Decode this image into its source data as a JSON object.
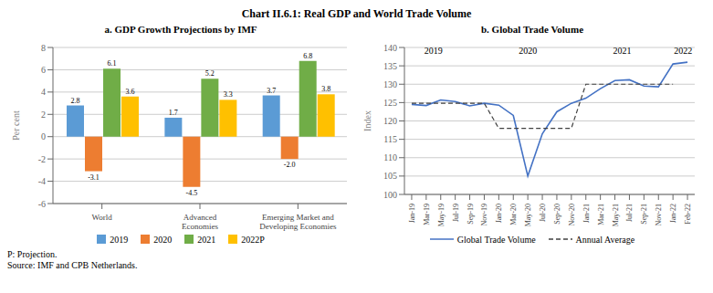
{
  "title": "Chart II.6.1: Real GDP and World Trade Volume",
  "footnote": "P: Projection.\nSource: IMF and CPB Netherlands.",
  "chart_data": [
    {
      "type": "bar",
      "title": "a. GDP Growth Projections by IMF",
      "categories": [
        "World",
        "Advanced\nEconomies",
        "Emerging Market and\nDeveloping Economies"
      ],
      "series": [
        {
          "name": "2019",
          "color": "#5B9BD5",
          "values": [
            2.8,
            1.7,
            3.7
          ],
          "value_labels": [
            "2.8",
            "1.7",
            "3.7"
          ]
        },
        {
          "name": "2020",
          "color": "#ED7D31",
          "values": [
            -3.1,
            -4.5,
            -2.0
          ],
          "value_labels": [
            "-3.1",
            "-4.5",
            "-2.0"
          ]
        },
        {
          "name": "2021",
          "color": "#70AD47",
          "values": [
            6.1,
            5.2,
            6.8
          ],
          "value_labels": [
            "6.1",
            "5.2",
            "6.8"
          ]
        },
        {
          "name": "2022P",
          "color": "#FFC000",
          "values": [
            3.6,
            3.3,
            3.8
          ],
          "value_labels": [
            "3.6",
            "3.3",
            "3.8"
          ]
        }
      ],
      "ylabel": "Per cent",
      "ylim": [
        -6,
        8
      ],
      "yticks": [
        -6,
        -4,
        -2,
        0,
        2,
        4,
        6,
        8
      ],
      "grid": true,
      "data_labels": true,
      "legend": "bottom"
    },
    {
      "type": "line",
      "title": "b. Global Trade Volume",
      "categories": [
        "Jan-19",
        "Mar-19",
        "May-19",
        "Jul-19",
        "Sep-19",
        "Nov-19",
        "Jan-20",
        "Mar-20",
        "May-20",
        "Jul-20",
        "Sep-20",
        "Nov-20",
        "Jan-21",
        "Mar-21",
        "May-21",
        "Jul-21",
        "Sep-21",
        "Nov-21",
        "Jan-22",
        "Feb-22"
      ],
      "series": [
        {
          "name": "Global Trade Volume",
          "color": "#4472C4",
          "line_style": "solid",
          "values": [
            124.5,
            124.2,
            125.7,
            125.3,
            124.1,
            124.8,
            124.3,
            121.5,
            105.0,
            116.5,
            122.5,
            124.8,
            126.2,
            128.8,
            131.0,
            131.2,
            129.5,
            129.3,
            135.5,
            136.0
          ]
        },
        {
          "name": "Annual Average",
          "color": "#404040",
          "line_style": "dashed",
          "values": [
            124.8,
            124.8,
            124.8,
            124.8,
            124.8,
            124.8,
            118.0,
            118.0,
            118.0,
            118.0,
            118.0,
            118.0,
            130.0,
            130.0,
            130.0,
            130.0,
            130.0,
            130.0,
            130.0,
            null
          ]
        }
      ],
      "ylabel": "Index",
      "ylim": [
        100,
        140
      ],
      "yticks": [
        100,
        105,
        110,
        115,
        120,
        125,
        130,
        135,
        140
      ],
      "grid": true,
      "legend": "bottom",
      "annotations": [
        {
          "text": "2019",
          "x": 1.5,
          "y": 138.2
        },
        {
          "text": "2020",
          "x": 8.0,
          "y": 138.2
        },
        {
          "text": "2021",
          "x": 14.5,
          "y": 138.2
        },
        {
          "text": "2022",
          "x": 18.7,
          "y": 138.2
        }
      ]
    }
  ]
}
